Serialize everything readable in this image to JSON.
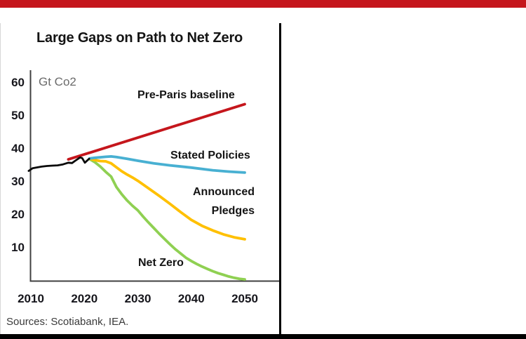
{
  "page": {
    "title": "Large Gaps on Path to Net Zero",
    "unit_label": "Gt Co2",
    "source_note": "Sources: Scotiabank, IEA."
  },
  "colors": {
    "brand_bar": "#c5161c",
    "footer_bar": "#000000",
    "divider": "#000000",
    "axis": "#404040",
    "pre_paris": "#c5161c",
    "stated_policies": "#48b0d2",
    "announced_pledges": "#ffc000",
    "net_zero": "#8fd052",
    "historical": "#0a0a0a"
  },
  "labels": {
    "pre_paris": "Pre-Paris baseline",
    "stated_policies": "Stated Policies",
    "announced_line1": "Announced",
    "announced_line2": "Pledges",
    "net_zero": "Net Zero"
  },
  "chart_data": {
    "type": "line",
    "title": "Large Gaps on Path to Net Zero",
    "xlabel": "",
    "ylabel": "Gt Co2",
    "xlim": [
      2009.5,
      2051
    ],
    "ylim": [
      0,
      63
    ],
    "x_ticks": [
      2010,
      2020,
      2030,
      2040,
      2050
    ],
    "y_ticks": [
      60,
      50,
      40,
      30,
      20,
      10
    ],
    "grid": false,
    "legend": "inline-annotations",
    "series": [
      {
        "name": "Pre-Paris baseline",
        "color_key": "pre_paris",
        "points": [
          [
            2017,
            36.8
          ],
          [
            2050,
            53.6
          ]
        ]
      },
      {
        "name": "Net Zero",
        "color_key": "net_zero",
        "points": [
          [
            2021,
            36.9
          ],
          [
            2022,
            35.9
          ],
          [
            2023,
            34.6
          ],
          [
            2024,
            33.0
          ],
          [
            2025,
            31.6
          ],
          [
            2026,
            28.4
          ],
          [
            2027,
            26.2
          ],
          [
            2028,
            24.3
          ],
          [
            2029,
            22.7
          ],
          [
            2030,
            21.3
          ],
          [
            2031,
            19.4
          ],
          [
            2032,
            17.6
          ],
          [
            2033,
            15.9
          ],
          [
            2034,
            14.2
          ],
          [
            2035,
            12.6
          ],
          [
            2036,
            11.0
          ],
          [
            2037,
            9.5
          ],
          [
            2038,
            8.2
          ],
          [
            2039,
            6.9
          ],
          [
            2040,
            5.9
          ],
          [
            2041,
            5.0
          ],
          [
            2042,
            4.2
          ],
          [
            2043,
            3.5
          ],
          [
            2044,
            2.8
          ],
          [
            2045,
            2.2
          ],
          [
            2046,
            1.7
          ],
          [
            2047,
            1.2
          ],
          [
            2048,
            0.8
          ],
          [
            2049,
            0.5
          ],
          [
            2050,
            0.3
          ]
        ]
      },
      {
        "name": "Announced Pledges",
        "color_key": "announced_pledges",
        "points": [
          [
            2021,
            37.0
          ],
          [
            2022,
            36.6
          ],
          [
            2023,
            36.3
          ],
          [
            2024,
            36.2
          ],
          [
            2025,
            35.6
          ],
          [
            2026,
            34.4
          ],
          [
            2027,
            33.2
          ],
          [
            2028,
            32.2
          ],
          [
            2029,
            31.3
          ],
          [
            2030,
            30.3
          ],
          [
            2032,
            28.0
          ],
          [
            2034,
            25.7
          ],
          [
            2036,
            23.3
          ],
          [
            2038,
            20.8
          ],
          [
            2040,
            18.4
          ],
          [
            2042,
            16.6
          ],
          [
            2044,
            15.2
          ],
          [
            2046,
            14.0
          ],
          [
            2048,
            13.1
          ],
          [
            2050,
            12.5
          ]
        ]
      },
      {
        "name": "Stated Policies",
        "color_key": "stated_policies",
        "points": [
          [
            2021,
            37.1
          ],
          [
            2022,
            37.3
          ],
          [
            2024,
            37.6
          ],
          [
            2025,
            37.7
          ],
          [
            2026,
            37.5
          ],
          [
            2028,
            37.0
          ],
          [
            2030,
            36.4
          ],
          [
            2033,
            35.6
          ],
          [
            2036,
            35.0
          ],
          [
            2040,
            34.3
          ],
          [
            2044,
            33.5
          ],
          [
            2047,
            33.1
          ],
          [
            2050,
            32.8
          ]
        ]
      },
      {
        "name": "Historical emissions",
        "color_key": "historical",
        "points": [
          [
            2009.6,
            33.3
          ],
          [
            2010.3,
            34.1
          ],
          [
            2011,
            34.3
          ],
          [
            2012,
            34.6
          ],
          [
            2013,
            34.8
          ],
          [
            2014,
            34.9
          ],
          [
            2015,
            35.0
          ],
          [
            2016,
            35.3
          ],
          [
            2017,
            35.8
          ],
          [
            2017.7,
            35.7
          ],
          [
            2018.3,
            36.4
          ],
          [
            2019.2,
            37.4
          ],
          [
            2019.6,
            37.2
          ],
          [
            2020.1,
            35.8
          ],
          [
            2020.9,
            37.0
          ]
        ]
      }
    ]
  }
}
